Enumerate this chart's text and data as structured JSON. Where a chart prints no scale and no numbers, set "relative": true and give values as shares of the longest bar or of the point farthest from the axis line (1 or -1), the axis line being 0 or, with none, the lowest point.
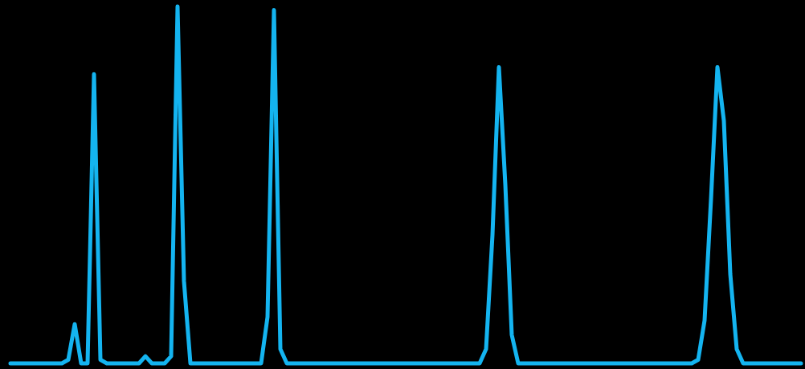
{
  "chart_data": {
    "type": "line",
    "relative": true,
    "categories": [
      null,
      null,
      null,
      null,
      null,
      null,
      null,
      null,
      null,
      null,
      null,
      null,
      null,
      null,
      null,
      null,
      null,
      null,
      null,
      null,
      null,
      null,
      null,
      null,
      null,
      null,
      null,
      null,
      null,
      null,
      null,
      null,
      null,
      null,
      null,
      null,
      null,
      null,
      null,
      null,
      null,
      null,
      null,
      null,
      null,
      null,
      null,
      null,
      null,
      null,
      null,
      null,
      null,
      null,
      null,
      null,
      null,
      null,
      null,
      null,
      null,
      null,
      null,
      null,
      null,
      null,
      null,
      null,
      null,
      null,
      null,
      null,
      null,
      null,
      null,
      null,
      null,
      null,
      null,
      null,
      null,
      null,
      null,
      null,
      null,
      null,
      null,
      null,
      null,
      null,
      null,
      null,
      null,
      null,
      null,
      null,
      null,
      null,
      null,
      null,
      null,
      null,
      null,
      null,
      null,
      null,
      null,
      null,
      null,
      null,
      null,
      null,
      null,
      null,
      null,
      null,
      null,
      null,
      null,
      null,
      null,
      null,
      null,
      null
    ],
    "series": [
      {
        "color": "#14b4f0",
        "values": [
          0,
          0,
          0,
          0,
          0,
          0,
          0,
          0,
          0,
          0.01,
          0.11,
          0,
          0,
          0.81,
          0.01,
          0,
          0,
          0,
          0,
          0,
          0,
          0.02,
          0,
          0,
          0,
          0.02,
          1,
          0.23,
          0,
          0,
          0,
          0,
          0,
          0,
          0,
          0,
          0,
          0,
          0,
          0,
          0.13,
          0.99,
          0.04,
          0,
          0,
          0,
          0,
          0,
          0,
          0,
          0,
          0,
          0,
          0,
          0,
          0,
          0,
          0,
          0,
          0,
          0,
          0,
          0,
          0,
          0,
          0,
          0,
          0,
          0,
          0,
          0,
          0,
          0,
          0,
          0.04,
          0.36,
          0.83,
          0.5,
          0.08,
          0,
          0,
          0,
          0,
          0,
          0,
          0,
          0,
          0,
          0,
          0,
          0,
          0,
          0,
          0,
          0,
          0,
          0,
          0,
          0,
          0,
          0,
          0,
          0,
          0,
          0,
          0,
          0,
          0.01,
          0.12,
          0.46,
          0.83,
          0.68,
          0.25,
          0.04,
          0,
          0,
          0,
          0,
          0,
          0,
          0,
          0,
          0,
          0
        ]
      }
    ]
  }
}
